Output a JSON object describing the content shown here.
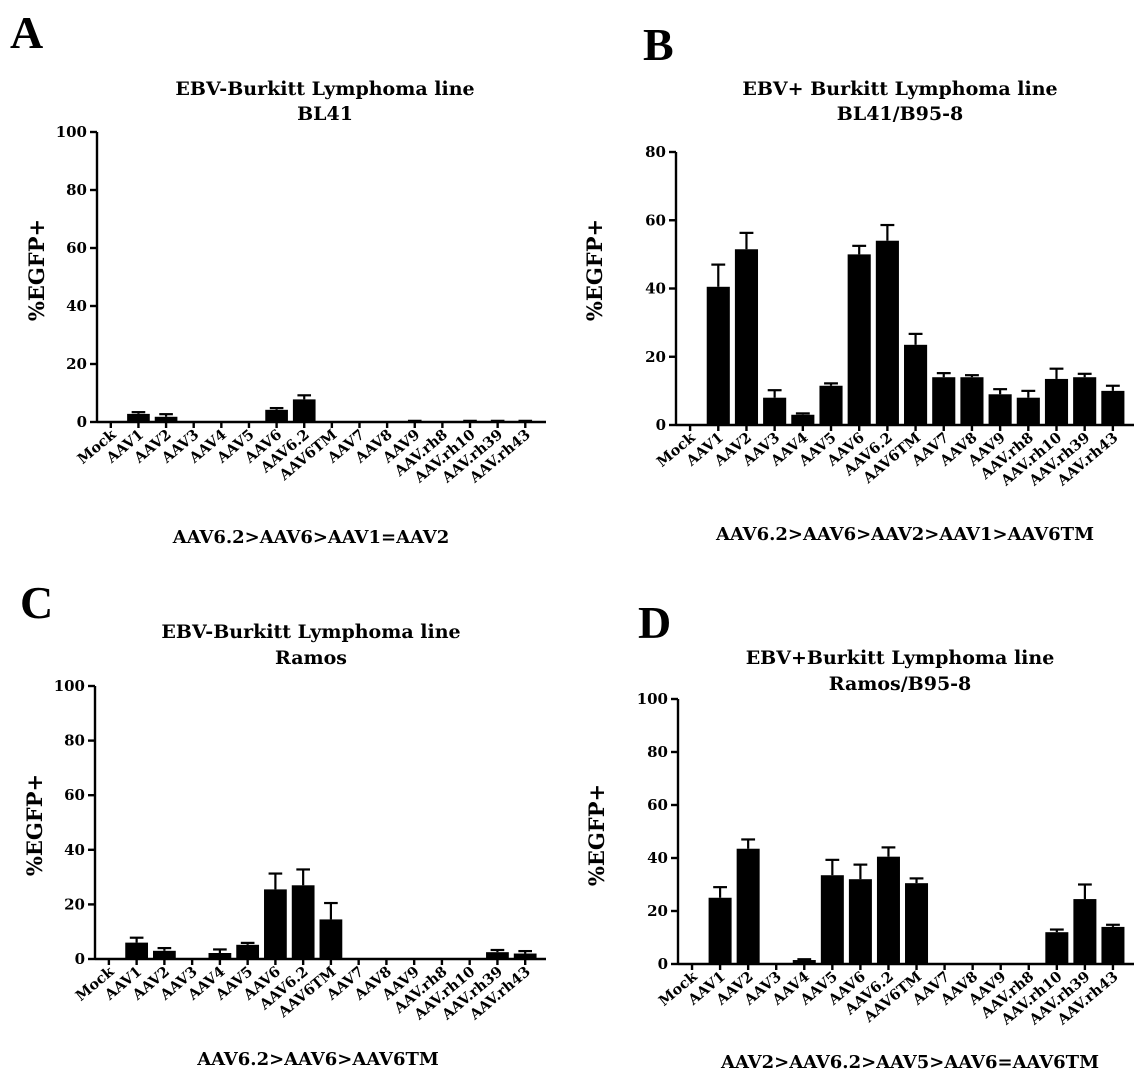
{
  "chart_data": [
    {
      "panel": "A",
      "type": "bar",
      "title": [
        "EBV-Burkitt Lymphoma line",
        "BL41"
      ],
      "ylabel": "%EGFP+",
      "ylim": [
        0,
        100
      ],
      "yticks": [
        0,
        20,
        40,
        60,
        80,
        100
      ],
      "categories": [
        "Mock",
        "AAV1",
        "AAV2",
        "AAV3",
        "AAV4",
        "AAV5",
        "AAV6",
        "AAV6.2",
        "AAV6TM",
        "AAV7",
        "AAV8",
        "AAV9",
        "AAV.rh8",
        "AAV.rh10",
        "AAV.rh39",
        "AAV.rh43"
      ],
      "values": [
        0,
        2.8,
        1.8,
        0,
        0,
        0,
        4.2,
        7.8,
        0,
        0,
        0,
        0.3,
        0,
        0.3,
        0.3,
        0.3
      ],
      "errors": [
        0,
        0.6,
        0.9,
        0,
        0,
        0,
        0.6,
        1.4,
        0,
        0,
        0,
        0.1,
        0,
        0.1,
        0.1,
        0.1
      ],
      "annotation": "AAV6.2>AAV6>AAV1=AAV2"
    },
    {
      "panel": "B",
      "type": "bar",
      "title": [
        "EBV+ Burkitt Lymphoma line",
        "BL41/B95-8"
      ],
      "ylabel": "%EGFP+",
      "ylim": [
        0,
        80
      ],
      "yticks": [
        0,
        20,
        40,
        60,
        80
      ],
      "categories": [
        "Mock",
        "AAV1",
        "AAV2",
        "AAV3",
        "AAV4",
        "AAV5",
        "AAV6",
        "AAV6.2",
        "AAV6TM",
        "AAV7",
        "AAV8",
        "AAV9",
        "AAV.rh8",
        "AAV.rh10",
        "AAV.rh39",
        "AAV.rh43"
      ],
      "values": [
        0,
        40.5,
        51.5,
        8,
        3,
        11.5,
        50,
        54,
        23.5,
        14,
        14,
        9,
        8,
        13.5,
        14,
        10
      ],
      "errors": [
        0,
        6.5,
        4.8,
        2.2,
        0.4,
        0.7,
        2.5,
        4.6,
        3.2,
        1.2,
        0.6,
        1.5,
        2,
        3,
        1,
        1.5
      ],
      "annotation": "AAV6.2>AAV6>AAV2>AAV1>AAV6TM"
    },
    {
      "panel": "C",
      "type": "bar",
      "title": [
        "EBV-Burkitt Lymphoma line",
        "Ramos"
      ],
      "ylabel": "%EGFP+",
      "ylim": [
        0,
        100
      ],
      "yticks": [
        0,
        20,
        40,
        60,
        80,
        100
      ],
      "categories": [
        "Mock",
        "AAV1",
        "AAV2",
        "AAV3",
        "AAV4",
        "AAV5",
        "AAV6",
        "AAV6.2",
        "AAV6TM",
        "AAV7",
        "AAV8",
        "AAV9",
        "AAV.rh8",
        "AAV.rh10",
        "AAV.rh39",
        "AAV.rh43"
      ],
      "values": [
        0,
        6,
        3,
        0,
        2.2,
        5.2,
        25.5,
        27,
        14.5,
        0,
        0,
        0,
        0,
        0,
        2.5,
        2
      ],
      "errors": [
        0,
        1.8,
        1,
        0,
        1.3,
        0.7,
        5.8,
        5.8,
        6,
        0,
        0,
        0,
        0,
        0,
        0.8,
        0.9
      ],
      "annotation": "AAV6.2>AAV6>AAV6TM"
    },
    {
      "panel": "D",
      "type": "bar",
      "title": [
        "EBV+Burkitt Lymphoma  line",
        "Ramos/B95-8"
      ],
      "ylabel": "%EGFP+",
      "ylim": [
        0,
        100
      ],
      "yticks": [
        0,
        20,
        40,
        60,
        80,
        100
      ],
      "categories": [
        "Mock",
        "AAV1",
        "AAV2",
        "AAV3",
        "AAV4",
        "AAV5",
        "AAV6",
        "AAV6.2",
        "AAV6TM",
        "AAV7",
        "AAV8",
        "AAV9",
        "AAV.rh8",
        "AAV.rh10",
        "AAV.rh39",
        "AAV.rh43"
      ],
      "values": [
        0,
        25,
        43.5,
        0,
        1.5,
        33.5,
        32,
        40.5,
        30.5,
        0,
        0,
        0,
        0,
        12,
        24.5,
        14
      ],
      "errors": [
        0,
        4,
        3.5,
        0,
        0.3,
        5.8,
        5.5,
        3.5,
        1.8,
        0,
        0,
        0,
        0,
        1,
        5.5,
        0.8
      ],
      "annotation": "AAV2>AAV6.2>AAV5>AAV6=AAV6TM"
    }
  ]
}
